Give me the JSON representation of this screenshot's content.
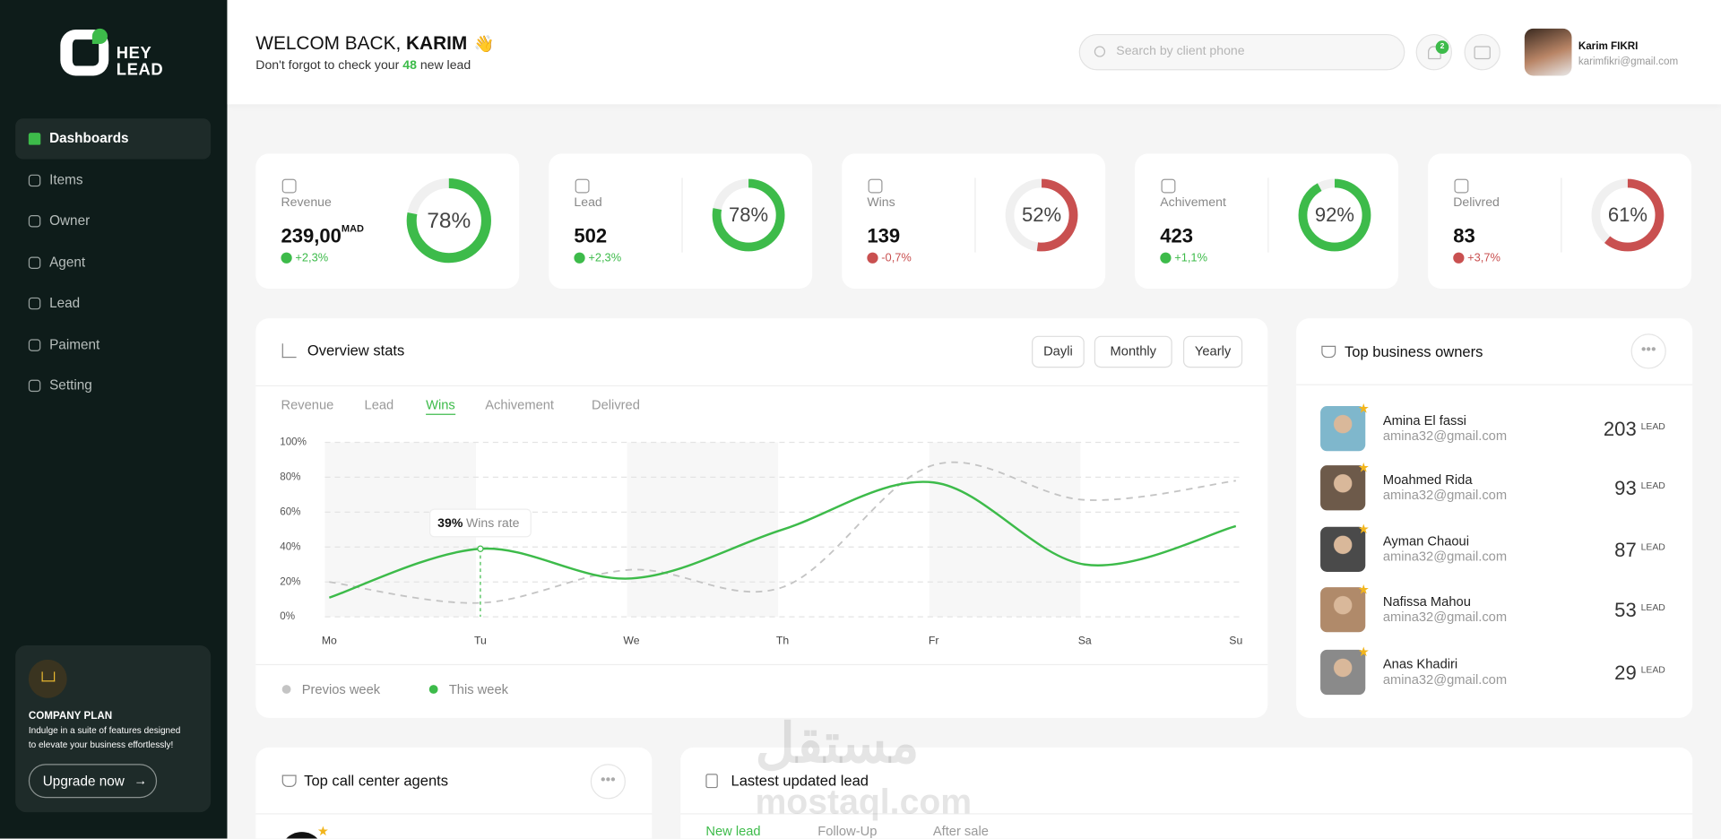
{
  "brand": {
    "line1": "HEY",
    "line2": "LEAD"
  },
  "sidebar": {
    "menu": [
      "Dashboards",
      "Items",
      "Owner",
      "Agent",
      "Lead",
      "Paiment",
      "Setting"
    ],
    "plan": {
      "title": "COMPANY  PLAN",
      "text_line1": "Indulge in a suite of features designed",
      "text_line2": "to elevate your business effortlessly!",
      "button": "Upgrade now"
    }
  },
  "header": {
    "greeting": "WELCOM BACK, ",
    "name": "KARIM",
    "emoji": "👋",
    "subtitle_before": "Don't forgot to check your ",
    "count": "48",
    "subtitle_after": " new lead",
    "search_placeholder": "Search by client phone",
    "notifications": "2",
    "user": {
      "name": "Karim FIKRI",
      "email": "karimfikri@gmail.com"
    }
  },
  "kpis": [
    {
      "label": "Revenue",
      "value": "239,00",
      "unit": "MAD",
      "change": "+2,3%",
      "trend": "up",
      "percent": 78,
      "percent_label": "78%",
      "color": "#3dbb4a"
    },
    {
      "label": "Lead",
      "value": "502",
      "change": "+2,3%",
      "trend": "up",
      "percent": 78,
      "percent_label": "78%",
      "color": "#3dbb4a"
    },
    {
      "label": "Wins",
      "value": "139",
      "change": "-0,7%",
      "trend": "down",
      "percent": 52,
      "percent_label": "52%",
      "color": "#c95050"
    },
    {
      "label": "Achivement",
      "value": "423",
      "change": "+1,1%",
      "trend": "up",
      "percent": 92,
      "percent_label": "92%",
      "color": "#3dbb4a"
    },
    {
      "label": "Delivred",
      "value": "83",
      "change": "+3,7%",
      "trend": "down",
      "percent": 61,
      "percent_label": "61%",
      "color": "#c95050"
    }
  ],
  "overview": {
    "title": "Overview stats",
    "periods": [
      "Dayli",
      "Monthly",
      "Yearly"
    ],
    "tabs": [
      "Revenue",
      "Lead",
      "Wins",
      "Achivement",
      "Delivred"
    ],
    "active_tab": 2
  },
  "chart_data": {
    "type": "line",
    "categories": [
      "Mo",
      "Tu",
      "We",
      "Th",
      "Fr",
      "Sa",
      "Su"
    ],
    "series": [
      {
        "name": "Previos week",
        "color": "#c4c4c4",
        "dashed": true,
        "values": [
          20,
          8,
          27,
          17,
          87,
          67,
          78
        ]
      },
      {
        "name": "This week",
        "color": "#3dbb4a",
        "values": [
          11,
          39,
          22,
          50,
          77,
          30,
          52
        ]
      }
    ],
    "ylim": [
      0,
      100
    ],
    "yticks": [
      {
        "value": 0,
        "label": "0%"
      },
      {
        "value": 20,
        "label": "20%"
      },
      {
        "value": 40,
        "label": "40%"
      },
      {
        "value": 60,
        "label": "60%"
      },
      {
        "value": 80,
        "label": "80%"
      },
      {
        "value": 100,
        "label": "100%"
      }
    ],
    "grid": true,
    "annotation": {
      "category": 1,
      "series": 1,
      "label": "39%",
      "text": "Wins rate"
    }
  },
  "owners": {
    "title": "Top business owners",
    "unit": "LEAD",
    "rows": [
      {
        "name": "Amina El fassi",
        "email": "amina32@gmail.com",
        "count": "203"
      },
      {
        "name": "Moahmed Rida",
        "email": "amina32@gmail.com",
        "count": "93"
      },
      {
        "name": "Ayman Chaoui",
        "email": "amina32@gmail.com",
        "count": "87"
      },
      {
        "name": "Nafissa Mahou",
        "email": "amina32@gmail.com",
        "count": "53"
      },
      {
        "name": "Anas Khadiri",
        "email": "amina32@gmail.com",
        "count": "29"
      }
    ]
  },
  "agents": {
    "title": "Top call center agents"
  },
  "leads": {
    "title": "Lastest updated lead",
    "tabs": [
      "New lead",
      "Follow-Up",
      "After sale"
    ]
  },
  "watermark": {
    "arabic": "مستقل",
    "latin": "mostaql.com"
  }
}
